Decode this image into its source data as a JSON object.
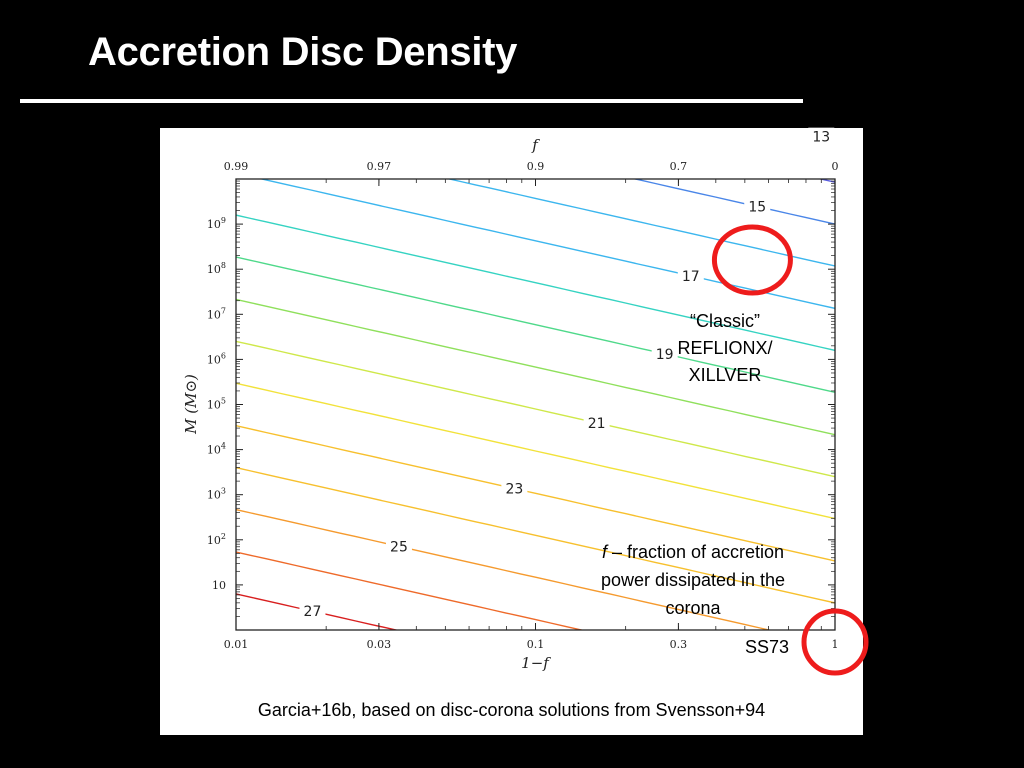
{
  "slide": {
    "title": "Accretion Disc Density",
    "credit": "Garcia+16b, based on disc-corona solutions from Svensson+94"
  },
  "annotations": {
    "classic_line1": "“Classic”",
    "classic_line2": "REFLIONX/",
    "classic_line3": "XILLVER",
    "fraction_symbol": "f",
    "fraction_rest1": " – fraction of accretion",
    "fraction_line2": "power dissipated in the",
    "fraction_line3": "corona",
    "ss73": "SS73"
  },
  "colors": {
    "highlight_circle": "#ee1c1c",
    "contour_colors": [
      "#d81f1f",
      "#ee6a2a",
      "#f59a2e",
      "#f7c02e",
      "#f2e23a",
      "#cfe84a",
      "#8fe05c",
      "#4fd98a",
      "#35d3c2",
      "#3cb6ee",
      "#4a86e8",
      "#5a5ee0",
      "#6d3bd6"
    ]
  },
  "chart_data": {
    "type": "contour",
    "title": "",
    "xlabel": "1−f",
    "x2label": "f",
    "ylabel": "M (M⊙)",
    "xscale": "log",
    "yscale": "log",
    "xlim": [
      0.01,
      1
    ],
    "ylim": [
      1,
      10000000000.0
    ],
    "x_ticks": [
      {
        "value": 0.01,
        "label": "0.01"
      },
      {
        "value": 0.03,
        "label": "0.03"
      },
      {
        "value": 0.1,
        "label": "0.1"
      },
      {
        "value": 0.3,
        "label": "0.3"
      },
      {
        "value": 1,
        "label": "1"
      }
    ],
    "x2_ticks": [
      {
        "one_minus_f": 0.01,
        "label": "0.99"
      },
      {
        "one_minus_f": 0.03,
        "label": "0.97"
      },
      {
        "one_minus_f": 0.1,
        "label": "0.9"
      },
      {
        "one_minus_f": 0.3,
        "label": "0.7"
      },
      {
        "one_minus_f": 1,
        "label": "0"
      }
    ],
    "y_ticks": [
      {
        "value": 10,
        "label": "10",
        "sup": ""
      },
      {
        "value": 100,
        "label": "10",
        "sup": "2"
      },
      {
        "value": 1000,
        "label": "10",
        "sup": "3"
      },
      {
        "value": 10000,
        "label": "10",
        "sup": "4"
      },
      {
        "value": 100000,
        "label": "10",
        "sup": "5"
      },
      {
        "value": 1000000,
        "label": "10",
        "sup": "6"
      },
      {
        "value": 10000000,
        "label": "10",
        "sup": "7"
      },
      {
        "value": 100000000,
        "label": "10",
        "sup": "8"
      },
      {
        "value": 1000000000,
        "label": "10",
        "sup": "9"
      }
    ],
    "contour_slope": -1.5,
    "contours": [
      {
        "level": 27,
        "labeled": true,
        "at_x_one_minus_f": 1,
        "logM": -2.2
      },
      {
        "level": 26,
        "labeled": false,
        "at_x_one_minus_f": 1,
        "logM": -1.27
      },
      {
        "level": 25,
        "labeled": true,
        "at_x_one_minus_f": 1,
        "logM": -0.33
      },
      {
        "level": 24,
        "labeled": false,
        "at_x_one_minus_f": 1,
        "logM": 0.6
      },
      {
        "level": 23,
        "labeled": true,
        "at_x_one_minus_f": 1,
        "logM": 1.53
      },
      {
        "level": 22,
        "labeled": false,
        "at_x_one_minus_f": 1,
        "logM": 2.47
      },
      {
        "level": 21,
        "labeled": true,
        "at_x_one_minus_f": 1,
        "logM": 3.4
      },
      {
        "level": 20,
        "labeled": false,
        "at_x_one_minus_f": 1,
        "logM": 4.33
      },
      {
        "level": 19,
        "labeled": true,
        "at_x_one_minus_f": 1,
        "logM": 5.27
      },
      {
        "level": 18,
        "labeled": false,
        "at_x_one_minus_f": 1,
        "logM": 6.2
      },
      {
        "level": 17,
        "labeled": true,
        "at_x_one_minus_f": 1,
        "logM": 7.13
      },
      {
        "level": 16,
        "labeled": false,
        "at_x_one_minus_f": 1,
        "logM": 8.07
      },
      {
        "level": 15,
        "labeled": true,
        "at_x_one_minus_f": 1,
        "logM": 9.0
      },
      {
        "level": 14,
        "labeled": false,
        "at_x_one_minus_f": 1,
        "logM": 9.93
      },
      {
        "level": 13,
        "labeled": true,
        "at_x_one_minus_f": 1,
        "logM": 10.87
      }
    ],
    "highlights": [
      {
        "label": "contour-15-highlight",
        "one_minus_f": 0.53,
        "M": 160000000.0
      },
      {
        "label": "ss73-highlight",
        "one_minus_f": 1,
        "M": 1
      }
    ]
  }
}
